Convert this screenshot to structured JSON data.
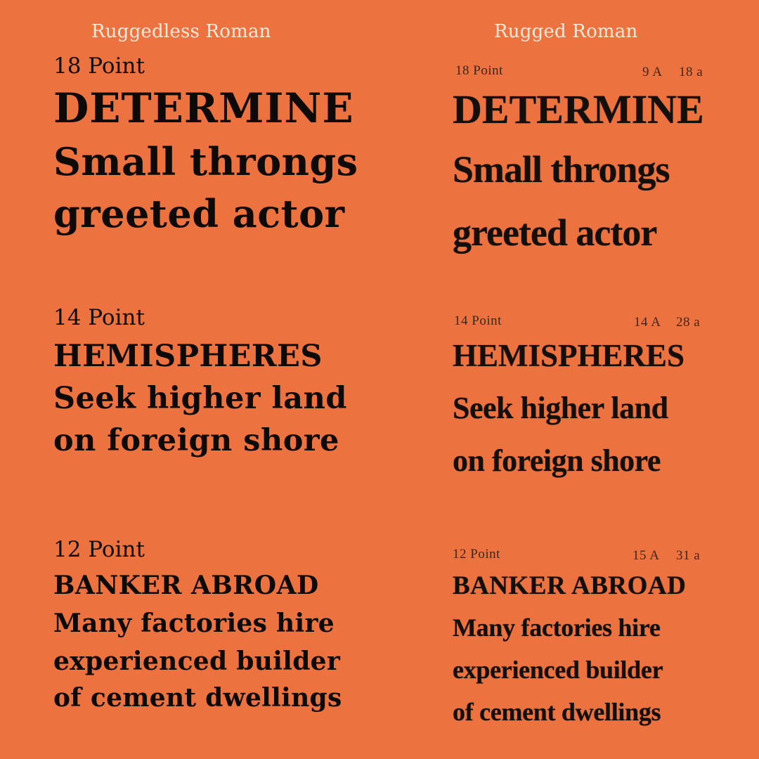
{
  "titles": {
    "left": "Ruggedless Roman",
    "right": "Rugged Roman"
  },
  "left": {
    "s18": {
      "label": "18 Point",
      "caps": "DETERMINE",
      "line1": "Small throngs",
      "line2": "greeted actor"
    },
    "s14": {
      "label": "14 Point",
      "caps": "HEMISPHERES",
      "line1": "Seek higher land",
      "line2": "on foreign shore"
    },
    "s12": {
      "label": "12 Point",
      "caps": "BANKER ABROAD",
      "line1": "Many factories hire",
      "line2": "experienced builder",
      "line3": "of cement dwellings"
    }
  },
  "right": {
    "s18": {
      "label": "18 Point",
      "caps_count": "9 A",
      "lower_count": "18 a",
      "caps": "DETERMINE",
      "line1": "Small throngs",
      "line2": "greeted actor"
    },
    "s14": {
      "label": "14 Point",
      "caps_count": "14 A",
      "lower_count": "28 a",
      "caps": "HEMISPHERES",
      "line1": "Seek higher land",
      "line2": "on foreign shore"
    },
    "s12": {
      "label": "12 Point",
      "caps_count": "15 A",
      "lower_count": "31 a",
      "caps": "BANKER ABROAD",
      "line1": "Many factories hire",
      "line2": "experienced builder",
      "line3": "of cement dwellings"
    }
  }
}
